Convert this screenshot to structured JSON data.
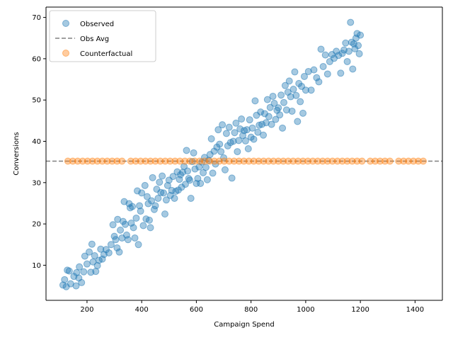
{
  "chart_data": {
    "type": "scatter",
    "xlabel": "Campaign Spend",
    "ylabel": "Conversions",
    "xlim": [
      50,
      1500
    ],
    "ylim": [
      1.5,
      72.5
    ],
    "xticks": [
      200,
      400,
      600,
      800,
      1000,
      1200,
      1400
    ],
    "yticks": [
      10,
      20,
      30,
      40,
      50,
      60,
      70
    ],
    "xtick_labels": [
      "200",
      "400",
      "600",
      "800",
      "1000",
      "1200",
      "1400"
    ],
    "ytick_labels": [
      "10",
      "20",
      "30",
      "40",
      "50",
      "60",
      "70"
    ],
    "grid": false,
    "legend_position": "top-left",
    "obs_avg": 35.2,
    "colors": {
      "observed": "#1f77b4",
      "counterfactual": "#ff7f0e",
      "obs_avg": "#808080"
    },
    "legend": [
      {
        "name": "Observed",
        "kind": "marker"
      },
      {
        "name": "Obs Avg",
        "kind": "dashed-line"
      },
      {
        "name": "Counterfactual",
        "kind": "marker"
      }
    ],
    "series": [
      {
        "name": "Observed",
        "color": "#1f77b4",
        "points": [
          [
            112,
            5.2
          ],
          [
            118,
            6.5
          ],
          [
            124,
            4.8
          ],
          [
            128,
            8.8
          ],
          [
            135,
            8.6
          ],
          [
            140,
            5.5
          ],
          [
            152,
            7.3
          ],
          [
            160,
            5.0
          ],
          [
            162,
            8.2
          ],
          [
            170,
            6.9
          ],
          [
            172,
            9.6
          ],
          [
            180,
            5.8
          ],
          [
            188,
            8.4
          ],
          [
            192,
            12.2
          ],
          [
            200,
            10.3
          ],
          [
            208,
            13.2
          ],
          [
            214,
            8.3
          ],
          [
            218,
            15.1
          ],
          [
            222,
            10.8
          ],
          [
            228,
            12.3
          ],
          [
            232,
            8.5
          ],
          [
            238,
            9.9
          ],
          [
            244,
            11.2
          ],
          [
            250,
            13.9
          ],
          [
            256,
            11.5
          ],
          [
            262,
            12.6
          ],
          [
            270,
            13.8
          ],
          [
            280,
            13.0
          ],
          [
            288,
            15.0
          ],
          [
            295,
            19.8
          ],
          [
            300,
            17.0
          ],
          [
            305,
            16.2
          ],
          [
            310,
            14.2
          ],
          [
            312,
            21.1
          ],
          [
            318,
            13.2
          ],
          [
            322,
            18.5
          ],
          [
            328,
            16.6
          ],
          [
            332,
            20.6
          ],
          [
            336,
            25.4
          ],
          [
            340,
            19.9
          ],
          [
            345,
            17.3
          ],
          [
            350,
            16.2
          ],
          [
            354,
            24.9
          ],
          [
            358,
            23.9
          ],
          [
            362,
            20.2
          ],
          [
            366,
            24.2
          ],
          [
            370,
            19.1
          ],
          [
            375,
            16.6
          ],
          [
            380,
            21.4
          ],
          [
            384,
            28.0
          ],
          [
            388,
            15.0
          ],
          [
            392,
            24.4
          ],
          [
            396,
            23.1
          ],
          [
            400,
            27.5
          ],
          [
            406,
            19.6
          ],
          [
            412,
            29.3
          ],
          [
            416,
            21.2
          ],
          [
            420,
            26.6
          ],
          [
            424,
            24.9
          ],
          [
            428,
            20.9
          ],
          [
            432,
            19.1
          ],
          [
            436,
            25.6
          ],
          [
            440,
            31.2
          ],
          [
            446,
            23.5
          ],
          [
            450,
            24.4
          ],
          [
            455,
            28.4
          ],
          [
            460,
            26.2
          ],
          [
            465,
            30.1
          ],
          [
            470,
            27.6
          ],
          [
            475,
            31.6
          ],
          [
            480,
            27.5
          ],
          [
            485,
            22.4
          ],
          [
            490,
            25.8
          ],
          [
            495,
            29.3
          ],
          [
            500,
            30.6
          ],
          [
            505,
            26.9
          ],
          [
            510,
            28.1
          ],
          [
            515,
            31.5
          ],
          [
            520,
            26.2
          ],
          [
            525,
            27.9
          ],
          [
            530,
            32.6
          ],
          [
            534,
            28.2
          ],
          [
            538,
            30.8
          ],
          [
            542,
            31.9
          ],
          [
            546,
            28.9
          ],
          [
            550,
            32.5
          ],
          [
            555,
            33.9
          ],
          [
            560,
            29.6
          ],
          [
            564,
            37.8
          ],
          [
            568,
            32.8
          ],
          [
            572,
            31.0
          ],
          [
            576,
            30.6
          ],
          [
            580,
            26.2
          ],
          [
            585,
            35.1
          ],
          [
            590,
            37.2
          ],
          [
            595,
            33.3
          ],
          [
            600,
            29.8
          ],
          [
            605,
            31.0
          ],
          [
            610,
            33.8
          ],
          [
            615,
            29.8
          ],
          [
            620,
            35.0
          ],
          [
            625,
            32.4
          ],
          [
            630,
            36.1
          ],
          [
            635,
            33.7
          ],
          [
            640,
            30.7
          ],
          [
            645,
            35.4
          ],
          [
            650,
            36.8
          ],
          [
            655,
            40.6
          ],
          [
            660,
            32.3
          ],
          [
            665,
            37.6
          ],
          [
            670,
            34.5
          ],
          [
            675,
            38.6
          ],
          [
            680,
            42.8
          ],
          [
            685,
            39.3
          ],
          [
            690,
            37.5
          ],
          [
            695,
            44.0
          ],
          [
            700,
            36.0
          ],
          [
            705,
            33.1
          ],
          [
            710,
            41.9
          ],
          [
            715,
            38.9
          ],
          [
            720,
            43.4
          ],
          [
            725,
            39.7
          ],
          [
            730,
            31.1
          ],
          [
            735,
            40.0
          ],
          [
            740,
            42.1
          ],
          [
            745,
            44.4
          ],
          [
            750,
            37.5
          ],
          [
            755,
            40.2
          ],
          [
            760,
            43.0
          ],
          [
            765,
            45.4
          ],
          [
            770,
            41.4
          ],
          [
            775,
            42.6
          ],
          [
            780,
            40.1
          ],
          [
            785,
            42.8
          ],
          [
            790,
            38.2
          ],
          [
            795,
            45.2
          ],
          [
            800,
            41.0
          ],
          [
            805,
            43.2
          ],
          [
            810,
            40.5
          ],
          [
            815,
            49.8
          ],
          [
            820,
            46.3
          ],
          [
            825,
            42.2
          ],
          [
            830,
            43.9
          ],
          [
            835,
            47.1
          ],
          [
            840,
            44.1
          ],
          [
            845,
            41.5
          ],
          [
            850,
            46.7
          ],
          [
            855,
            44.5
          ],
          [
            860,
            50.1
          ],
          [
            865,
            46.0
          ],
          [
            870,
            48.2
          ],
          [
            875,
            44.1
          ],
          [
            880,
            50.9
          ],
          [
            885,
            49.2
          ],
          [
            890,
            45.3
          ],
          [
            895,
            47.5
          ],
          [
            900,
            48.1
          ],
          [
            905,
            46.4
          ],
          [
            910,
            51.2
          ],
          [
            915,
            43.2
          ],
          [
            920,
            49.4
          ],
          [
            925,
            53.5
          ],
          [
            930,
            47.6
          ],
          [
            935,
            51.9
          ],
          [
            940,
            54.6
          ],
          [
            945,
            50.8
          ],
          [
            950,
            47.3
          ],
          [
            955,
            52.6
          ],
          [
            960,
            56.8
          ],
          [
            965,
            51.1
          ],
          [
            970,
            44.8
          ],
          [
            975,
            54.0
          ],
          [
            980,
            49.6
          ],
          [
            985,
            53.3
          ],
          [
            990,
            46.8
          ],
          [
            995,
            55.7
          ],
          [
            1000,
            52.4
          ],
          [
            1010,
            56.9
          ],
          [
            1020,
            52.4
          ],
          [
            1030,
            57.3
          ],
          [
            1040,
            55.4
          ],
          [
            1048,
            54.4
          ],
          [
            1056,
            62.3
          ],
          [
            1064,
            58.1
          ],
          [
            1072,
            60.9
          ],
          [
            1080,
            56.3
          ],
          [
            1088,
            59.3
          ],
          [
            1096,
            61.0
          ],
          [
            1104,
            60.1
          ],
          [
            1112,
            61.8
          ],
          [
            1120,
            60.8
          ],
          [
            1128,
            56.5
          ],
          [
            1134,
            61.3
          ],
          [
            1140,
            62.1
          ],
          [
            1146,
            63.8
          ],
          [
            1152,
            59.3
          ],
          [
            1158,
            61.8
          ],
          [
            1164,
            68.8
          ],
          [
            1168,
            64.0
          ],
          [
            1172,
            57.5
          ],
          [
            1176,
            63.6
          ],
          [
            1180,
            62.4
          ],
          [
            1184,
            65.0
          ],
          [
            1188,
            66.1
          ],
          [
            1192,
            63.2
          ],
          [
            1196,
            61.2
          ],
          [
            1200,
            65.7
          ]
        ]
      },
      {
        "name": "Counterfactual",
        "color": "#ff7f0e",
        "x": [
          130,
          148,
          166,
          184,
          202,
          220,
          238,
          256,
          274,
          292,
          310,
          328,
          360,
          378,
          396,
          414,
          432,
          450,
          468,
          486,
          504,
          522,
          540,
          558,
          576,
          594,
          612,
          630,
          648,
          666,
          684,
          702,
          720,
          738,
          756,
          774,
          792,
          810,
          828,
          846,
          864,
          882,
          900,
          918,
          936,
          954,
          972,
          990,
          1008,
          1026,
          1044,
          1062,
          1080,
          1098,
          1116,
          1134,
          1152,
          1170,
          1188,
          1206,
          1236,
          1254,
          1272,
          1290,
          1308,
          1340,
          1358,
          1376,
          1394,
          1412,
          1430
        ],
        "y": 35.2
      }
    ]
  }
}
